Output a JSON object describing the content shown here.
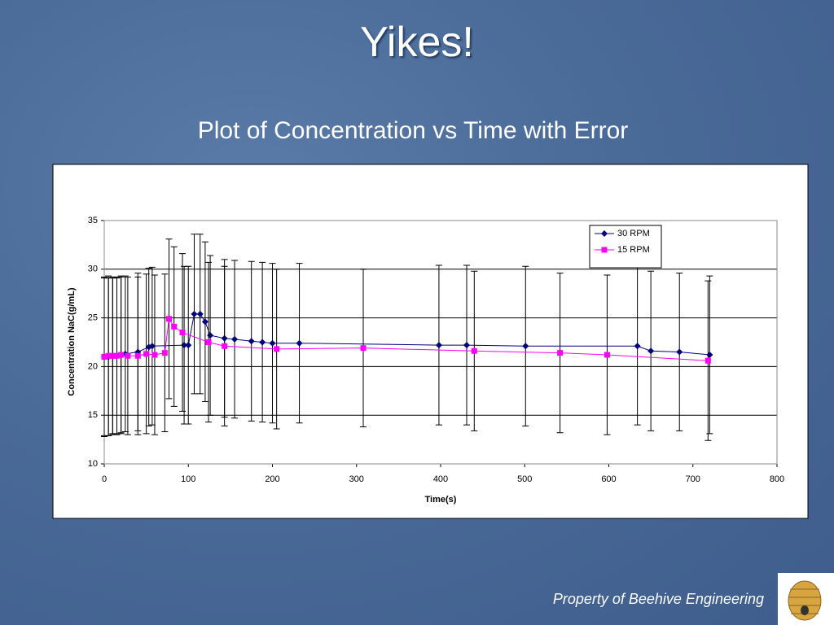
{
  "slide_title": "Yikes!",
  "footer": "Property of Beehive Engineering",
  "chart_data": {
    "type": "line",
    "title": "Plot of Concentration vs Time with Error",
    "x_label": "Time(s)",
    "y_label": "Concentration NaC(g/mL)",
    "xlim": [
      0,
      800
    ],
    "xticks": [
      0,
      100,
      200,
      300,
      400,
      500,
      600,
      700,
      800
    ],
    "ylim": [
      10,
      35
    ],
    "yticks": [
      10,
      15,
      20,
      25,
      30,
      35
    ],
    "grid": true,
    "legend": "upper right",
    "series": [
      {
        "name": "30 RPM",
        "color": "#000080",
        "marker": "diamond",
        "x": [
          0,
          5,
          10,
          15,
          20,
          25,
          40,
          53,
          57,
          95,
          100,
          107,
          114,
          120,
          126,
          143,
          155,
          175,
          188,
          200,
          232,
          398,
          431,
          501,
          634,
          650,
          684,
          720
        ],
        "values": [
          21.0,
          21.0,
          21.1,
          21.1,
          21.2,
          21.3,
          21.5,
          22.0,
          22.1,
          22.2,
          22.2,
          25.4,
          25.4,
          24.6,
          23.2,
          22.9,
          22.8,
          22.6,
          22.5,
          22.4,
          22.4,
          22.2,
          22.2,
          22.1,
          22.1,
          21.6,
          21.5,
          21.2
        ],
        "errors": [
          8.1,
          8.1,
          8.0,
          8.0,
          8.0,
          8.0,
          8.1,
          8.1,
          8.1,
          8.1,
          8.1,
          8.2,
          8.2,
          8.2,
          8.2,
          8.1,
          8.1,
          8.2,
          8.2,
          8.2,
          8.2,
          8.2,
          8.2,
          8.2,
          8.1,
          8.2,
          8.1,
          8.1
        ]
      },
      {
        "name": "15 RPM",
        "color": "#ff00ff",
        "marker": "square",
        "x": [
          0,
          5,
          10,
          15,
          20,
          28,
          40,
          50,
          60,
          72,
          77,
          83,
          93,
          124,
          143,
          205,
          308,
          440,
          542,
          598,
          718
        ],
        "values": [
          21.0,
          21.1,
          21.1,
          21.1,
          21.2,
          21.1,
          21.1,
          21.3,
          21.2,
          21.4,
          24.9,
          24.1,
          23.5,
          22.5,
          22.1,
          21.8,
          21.9,
          21.6,
          21.4,
          21.2,
          20.6
        ],
        "errors": [
          8.2,
          8.2,
          8.1,
          8.1,
          8.1,
          8.1,
          8.1,
          8.2,
          8.2,
          8.1,
          8.2,
          8.2,
          8.1,
          8.2,
          8.2,
          8.2,
          8.1,
          8.2,
          8.2,
          8.2,
          8.2
        ]
      }
    ]
  }
}
